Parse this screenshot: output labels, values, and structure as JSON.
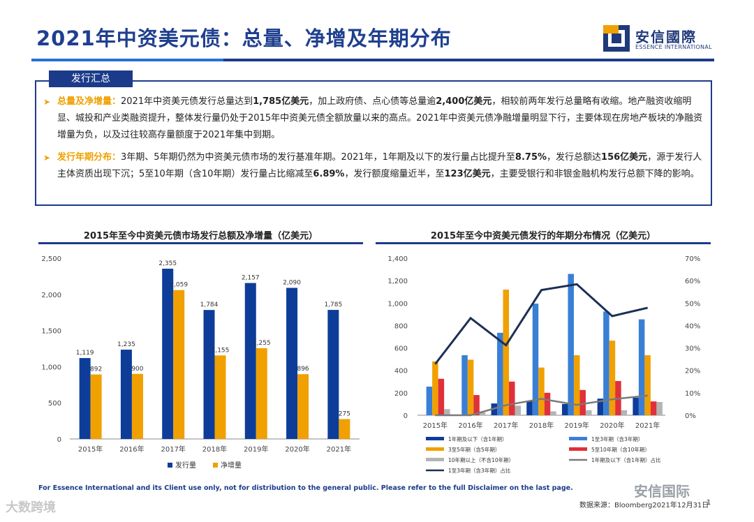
{
  "header": {
    "title": "2021年中资美元债：总量、净增及年期分布",
    "logo_cn": "安信國際",
    "logo_en": "ESSENCE INTERNATIONAL"
  },
  "summary": {
    "tab": "发行汇总",
    "bullets": [
      {
        "lead": "总量及净增量：",
        "parts": [
          {
            "t": "2021年中资美元债发行总量达到",
            "b": false
          },
          {
            "t": "1,785亿美元",
            "b": true
          },
          {
            "t": "，加上政府债、点心债等总量逾",
            "b": false
          },
          {
            "t": "2,400亿美元",
            "b": true
          },
          {
            "t": "，相较前两年发行总量略有收缩。地产融资收缩明显、城投和产业类融资提升，整体发行量仍处于2015年中资美元债全额放量以来的高点。2021年中资美元债净融增量明显下行，主要体现在房地产板块的净融资增量为负，以及过往较高存量额度于2021年集中到期。",
            "b": false
          }
        ]
      },
      {
        "lead": "发行年期分布：",
        "parts": [
          {
            "t": "3年期、5年期仍然为中资美元债市场的发行基准年期。2021年，1年期及以下的发行量占比提升至",
            "b": false
          },
          {
            "t": "8.75%",
            "b": true
          },
          {
            "t": "，发行总额达",
            "b": false
          },
          {
            "t": "156亿美元",
            "b": true
          },
          {
            "t": "，源于发行人主体资质出现下沉；5至10年期（含10年期）发行量占比缩减至",
            "b": false
          },
          {
            "t": "6.89%",
            "b": true
          },
          {
            "t": "，发行额度缩量近半，至",
            "b": false
          },
          {
            "t": "123亿美元",
            "b": true
          },
          {
            "t": "，主要受银行和非银金融机构发行总额下降的影响。",
            "b": false
          }
        ]
      }
    ]
  },
  "colors": {
    "navy": "#1b3b8a",
    "blue_dark": "#0d3d99",
    "blue_light": "#3a7fd6",
    "orange": "#f0a000",
    "red": "#e0303a",
    "gray": "#b4b4b4",
    "gray_line": "#7a7a7a",
    "dark_line": "#1b2f55"
  },
  "chart_data": [
    {
      "type": "bar",
      "title": "2015年至今中资美元债市场发行总额及净增量（亿美元）",
      "categories": [
        "2015年",
        "2016年",
        "2017年",
        "2018年",
        "2019年",
        "2020年",
        "2021年"
      ],
      "series": [
        {
          "name": "发行量",
          "color": "#0d3d99",
          "values": [
            1119,
            1235,
            2355,
            1784,
            2157,
            2090,
            1785
          ]
        },
        {
          "name": "净增量",
          "color": "#f0a000",
          "values": [
            892,
            900,
            2059,
            1155,
            1255,
            896,
            275
          ]
        }
      ],
      "value_labels": [
        [
          "1,119",
          "1,235",
          "2,355",
          "1,784",
          "2,157",
          "2,090",
          "1,785"
        ],
        [
          "892",
          "900",
          "2,059",
          "1,155",
          "1,255",
          "896",
          "275"
        ]
      ],
      "ylim": [
        0,
        2500
      ],
      "yticks": [
        "0",
        "500",
        "1,000",
        "1,500",
        "2,000",
        "2,500"
      ],
      "ytick_values": [
        0,
        500,
        1000,
        1500,
        2000,
        2500
      ],
      "grid": false,
      "legend": "bottom"
    },
    {
      "type": "bar",
      "title": "2015年至今中资美元债发行的年期分布情况（亿美元）",
      "categories": [
        "2015年",
        "2016年",
        "2017年",
        "2018年",
        "2019年",
        "2020年",
        "2021年"
      ],
      "series": [
        {
          "name": "1年期及以下（含1年期）",
          "kind": "bar",
          "color": "#0d3d99",
          "values": [
            0,
            0,
            105,
            130,
            100,
            148,
            156
          ]
        },
        {
          "name": "1至3年期（含3年期）",
          "kind": "bar",
          "color": "#3a7fd6",
          "values": [
            255,
            535,
            735,
            995,
            1260,
            925,
            855
          ]
        },
        {
          "name": "3至5年期（含5年期）",
          "kind": "bar",
          "color": "#f0a000",
          "values": [
            480,
            495,
            1120,
            425,
            535,
            665,
            535
          ]
        },
        {
          "name": "5至10年期（含10年期）",
          "kind": "bar",
          "color": "#e0303a",
          "values": [
            325,
            180,
            300,
            200,
            225,
            305,
            123
          ]
        },
        {
          "name": "10年期以上（不含10年期）",
          "kind": "bar",
          "color": "#b4b4b4",
          "values": [
            55,
            25,
            85,
            35,
            45,
            45,
            118
          ]
        },
        {
          "name": "1年期及以下（含1年期）占比",
          "kind": "line",
          "axis": "right",
          "color": "#7a7a7a",
          "values": [
            0.0,
            0.0,
            4.5,
            7.3,
            4.6,
            7.1,
            8.75
          ]
        },
        {
          "name": "1至3年期（含3年期）占比",
          "kind": "line",
          "axis": "right",
          "color": "#1b2f55",
          "values": [
            22.8,
            43.3,
            31.2,
            55.8,
            58.4,
            44.2,
            47.9
          ]
        }
      ],
      "ylim": [
        0,
        1400
      ],
      "yticks": [
        "0",
        "200",
        "400",
        "600",
        "800",
        "1,000",
        "1,200",
        "1,400"
      ],
      "ytick_values": [
        0,
        200,
        400,
        600,
        800,
        1000,
        1200,
        1400
      ],
      "y2lim": [
        0,
        70
      ],
      "y2ticks": [
        "0%",
        "10%",
        "20%",
        "30%",
        "40%",
        "50%",
        "60%",
        "70%"
      ],
      "y2tick_values": [
        0,
        10,
        20,
        30,
        40,
        50,
        60,
        70
      ],
      "grid": false,
      "legend": "bottom"
    }
  ],
  "footer": {
    "disclaimer": "For Essence International and its Client use only, not for distribution to the general public. Please refer to the full Disclaimer on the last page.",
    "source": "数据来源：Bloomberg2021年12月31日",
    "page": "1",
    "watermark_left": "大数跨境",
    "watermark_right": "安信国际"
  }
}
